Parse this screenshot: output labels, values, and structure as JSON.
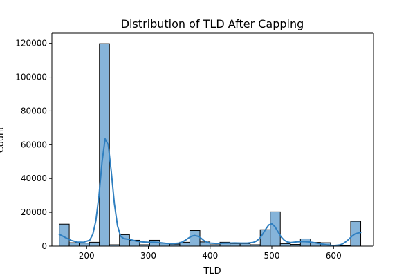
{
  "chart_data": {
    "type": "bar",
    "title": "Distribution of TLD After Capping",
    "xlabel": "TLD",
    "ylabel": "Count",
    "xlim": [
      143.7,
      664.7
    ],
    "ylim": [
      0,
      126000
    ],
    "xticks": [
      200,
      300,
      400,
      500,
      600
    ],
    "yticks": [
      0,
      20000,
      40000,
      60000,
      80000,
      100000,
      120000
    ],
    "bar_color": "#86b4d9",
    "bar_edge_color": "#000000",
    "kde_color": "#2f7fc0",
    "grid": false,
    "bins": [
      {
        "x0": 155.6,
        "x1": 171.8,
        "count": 13000
      },
      {
        "x0": 171.8,
        "x1": 188.1,
        "count": 2000
      },
      {
        "x0": 188.1,
        "x1": 204.4,
        "count": 1800
      },
      {
        "x0": 204.4,
        "x1": 220.7,
        "count": 2300
      },
      {
        "x0": 220.7,
        "x1": 237.0,
        "count": 119800
      },
      {
        "x0": 237.0,
        "x1": 253.2,
        "count": 800
      },
      {
        "x0": 253.2,
        "x1": 269.5,
        "count": 6800
      },
      {
        "x0": 269.5,
        "x1": 285.8,
        "count": 3500
      },
      {
        "x0": 285.8,
        "x1": 302.1,
        "count": 800
      },
      {
        "x0": 302.1,
        "x1": 318.4,
        "count": 3500
      },
      {
        "x0": 318.4,
        "x1": 334.6,
        "count": 1800
      },
      {
        "x0": 334.6,
        "x1": 350.9,
        "count": 1200
      },
      {
        "x0": 350.9,
        "x1": 367.2,
        "count": 2300
      },
      {
        "x0": 367.2,
        "x1": 383.5,
        "count": 9200
      },
      {
        "x0": 383.5,
        "x1": 399.8,
        "count": 2500
      },
      {
        "x0": 399.8,
        "x1": 416.0,
        "count": 800
      },
      {
        "x0": 416.0,
        "x1": 432.3,
        "count": 2300
      },
      {
        "x0": 432.3,
        "x1": 448.6,
        "count": 1500
      },
      {
        "x0": 448.6,
        "x1": 464.9,
        "count": 1500
      },
      {
        "x0": 464.9,
        "x1": 481.2,
        "count": 800
      },
      {
        "x0": 481.2,
        "x1": 497.4,
        "count": 9700
      },
      {
        "x0": 497.4,
        "x1": 513.7,
        "count": 20300
      },
      {
        "x0": 513.7,
        "x1": 530.0,
        "count": 1500
      },
      {
        "x0": 530.0,
        "x1": 546.3,
        "count": 1000
      },
      {
        "x0": 546.3,
        "x1": 562.6,
        "count": 4300
      },
      {
        "x0": 562.6,
        "x1": 578.8,
        "count": 2200
      },
      {
        "x0": 578.8,
        "x1": 595.1,
        "count": 2000
      },
      {
        "x0": 595.1,
        "x1": 611.4,
        "count": 300
      },
      {
        "x0": 611.4,
        "x1": 627.7,
        "count": 300
      },
      {
        "x0": 627.7,
        "x1": 644.0,
        "count": 14700
      }
    ],
    "kde": {
      "x": [
        155.6,
        165,
        175,
        185,
        195,
        205,
        210,
        215,
        220,
        225,
        230,
        235,
        240,
        245,
        250,
        255,
        260,
        265,
        270,
        280,
        290,
        300,
        310,
        320,
        330,
        340,
        350,
        355,
        360,
        365,
        370,
        375,
        380,
        385,
        390,
        395,
        400,
        410,
        420,
        430,
        440,
        450,
        460,
        470,
        475,
        480,
        485,
        490,
        495,
        500,
        505,
        510,
        515,
        520,
        525,
        530,
        540,
        550,
        560,
        570,
        580,
        590,
        600,
        610,
        615,
        620,
        625,
        630,
        635,
        640,
        644.0
      ],
      "y": [
        7000,
        5200,
        3400,
        2400,
        2300,
        3500,
        7000,
        15000,
        30000,
        50000,
        63500,
        60000,
        44000,
        25000,
        12000,
        6000,
        4500,
        4200,
        4000,
        3000,
        2500,
        2300,
        2300,
        2000,
        1600,
        1500,
        1800,
        2500,
        3500,
        4800,
        5900,
        6300,
        5900,
        4800,
        3300,
        2300,
        1800,
        1600,
        1700,
        1800,
        1900,
        1800,
        1800,
        2200,
        3000,
        4500,
        7000,
        10000,
        12500,
        13200,
        11500,
        8500,
        5500,
        3500,
        2500,
        2100,
        2500,
        2700,
        2500,
        2000,
        1300,
        700,
        300,
        700,
        1400,
        2600,
        4200,
        6000,
        7300,
        7800,
        8000
      ]
    }
  }
}
